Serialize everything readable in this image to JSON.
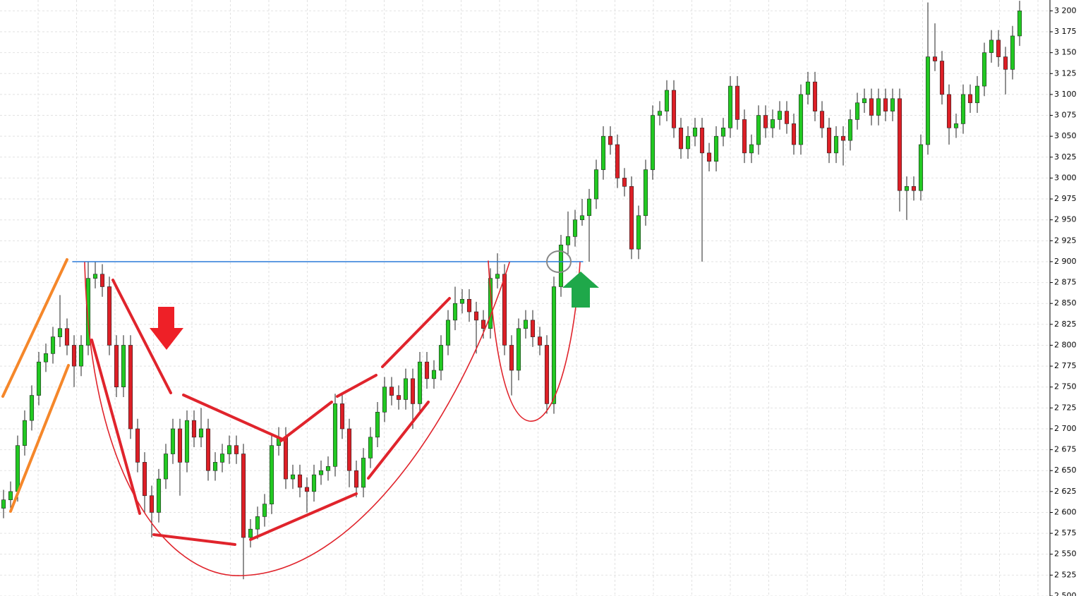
{
  "chart_data": {
    "type": "candlestick",
    "up_color": "#22c922",
    "down_color": "#dd1f26",
    "grid": true,
    "ylim": [
      2500,
      3213
    ],
    "yticks": [
      {
        "value": 2500,
        "label": "2 500"
      },
      {
        "value": 2525,
        "label": "2 525"
      },
      {
        "value": 2550,
        "label": "2 550"
      },
      {
        "value": 2575,
        "label": "2 575"
      },
      {
        "value": 2600,
        "label": "2 600"
      },
      {
        "value": 2625,
        "label": "2 625"
      },
      {
        "value": 2650,
        "label": "2 650"
      },
      {
        "value": 2675,
        "label": "2 675"
      },
      {
        "value": 2700,
        "label": "2 700"
      },
      {
        "value": 2725,
        "label": "2 725"
      },
      {
        "value": 2750,
        "label": "2 750"
      },
      {
        "value": 2775,
        "label": "2 775"
      },
      {
        "value": 2800,
        "label": "2 800"
      },
      {
        "value": 2825,
        "label": "2 825"
      },
      {
        "value": 2850,
        "label": "2 850"
      },
      {
        "value": 2875,
        "label": "2 875"
      },
      {
        "value": 2900,
        "label": "2 900"
      },
      {
        "value": 2925,
        "label": "2 925"
      },
      {
        "value": 2950,
        "label": "2 950"
      },
      {
        "value": 2975,
        "label": "2 975"
      },
      {
        "value": 3000,
        "label": "3 000"
      },
      {
        "value": 3025,
        "label": "3 025"
      },
      {
        "value": 3050,
        "label": "3 050"
      },
      {
        "value": 3075,
        "label": "3 075"
      },
      {
        "value": 3100,
        "label": "3 100"
      },
      {
        "value": 3125,
        "label": "3 125"
      },
      {
        "value": 3150,
        "label": "3 150"
      },
      {
        "value": 3175,
        "label": "3 175"
      },
      {
        "value": 3200,
        "label": "3 200"
      }
    ],
    "open": [
      2605,
      2615,
      2625,
      2680,
      2710,
      2740,
      2780,
      2790,
      2810,
      2820,
      2800,
      2775,
      2800,
      2880,
      2885,
      2870,
      2800,
      2750,
      2800,
      2700,
      2660,
      2620,
      2600,
      2640,
      2670,
      2700,
      2660,
      2710,
      2690,
      2700,
      2650,
      2660,
      2670,
      2680,
      2670,
      2570,
      2580,
      2595,
      2610,
      2680,
      2690,
      2640,
      2645,
      2630,
      2625,
      2645,
      2650,
      2655,
      2730,
      2700,
      2650,
      2630,
      2665,
      2690,
      2720,
      2750,
      2740,
      2735,
      2760,
      2730,
      2780,
      2760,
      2770,
      2800,
      2830,
      2850,
      2855,
      2840,
      2830,
      2820,
      2880,
      2885,
      2800,
      2770,
      2820,
      2830,
      2810,
      2800,
      2730,
      2870,
      2920,
      2930,
      2950,
      2955,
      2975,
      3010,
      3050,
      3040,
      3000,
      2990,
      2915,
      2955,
      3010,
      3075,
      3080,
      3105,
      3060,
      3035,
      3050,
      3060,
      3030,
      3020,
      3050,
      3060,
      3110,
      3070,
      3030,
      3040,
      3075,
      3060,
      3070,
      3080,
      3065,
      3040,
      3100,
      3115,
      3080,
      3060,
      3030,
      3050,
      3045,
      3070,
      3090,
      3095,
      3075,
      3095,
      3080,
      3095,
      2985,
      2990,
      2985,
      3040,
      3145,
      3140,
      3100,
      3060,
      3065,
      3100,
      3090,
      3110,
      3150,
      3165,
      3145,
      3130,
      3170
    ],
    "high": [
      2627,
      2637,
      2692,
      2722,
      2752,
      2792,
      2802,
      2822,
      2860,
      2832,
      2812,
      2812,
      2900,
      2900,
      2897,
      2882,
      2812,
      2812,
      2812,
      2712,
      2672,
      2632,
      2652,
      2682,
      2712,
      2712,
      2722,
      2722,
      2725,
      2712,
      2672,
      2682,
      2692,
      2692,
      2682,
      2592,
      2607,
      2622,
      2692,
      2702,
      2702,
      2657,
      2657,
      2642,
      2657,
      2662,
      2667,
      2742,
      2742,
      2712,
      2662,
      2677,
      2702,
      2732,
      2762,
      2762,
      2752,
      2772,
      2772,
      2792,
      2792,
      2782,
      2812,
      2842,
      2870,
      2867,
      2867,
      2852,
      2842,
      2892,
      2910,
      2897,
      2812,
      2832,
      2842,
      2842,
      2822,
      2812,
      2882,
      2932,
      2960,
      2962,
      2975,
      2987,
      3022,
      3062,
      3062,
      3052,
      3012,
      3002,
      2967,
      3022,
      3087,
      3092,
      3117,
      3117,
      3072,
      3062,
      3072,
      3072,
      3042,
      3062,
      3072,
      3122,
      3122,
      3082,
      3052,
      3087,
      3087,
      3082,
      3092,
      3092,
      3077,
      3112,
      3127,
      3127,
      3092,
      3072,
      3062,
      3062,
      3082,
      3102,
      3107,
      3107,
      3107,
      3107,
      3107,
      3107,
      3002,
      3002,
      3052,
      3210,
      3185,
      3152,
      3112,
      3077,
      3112,
      3112,
      3122,
      3162,
      3177,
      3177,
      3157,
      3182,
      3212
    ],
    "low": [
      2593,
      2603,
      2613,
      2668,
      2698,
      2728,
      2768,
      2778,
      2798,
      2788,
      2750,
      2763,
      2788,
      2868,
      2858,
      2788,
      2738,
      2738,
      2688,
      2648,
      2600,
      2570,
      2588,
      2628,
      2658,
      2620,
      2648,
      2678,
      2678,
      2638,
      2638,
      2648,
      2658,
      2658,
      2520,
      2558,
      2568,
      2583,
      2598,
      2668,
      2628,
      2628,
      2618,
      2600,
      2613,
      2633,
      2638,
      2643,
      2688,
      2630,
      2618,
      2618,
      2653,
      2678,
      2708,
      2728,
      2723,
      2723,
      2700,
      2718,
      2748,
      2748,
      2758,
      2788,
      2818,
      2838,
      2828,
      2790,
      2808,
      2808,
      2868,
      2788,
      2740,
      2758,
      2808,
      2798,
      2788,
      2718,
      2718,
      2858,
      2908,
      2918,
      2943,
      2900,
      2963,
      2998,
      3028,
      2988,
      2978,
      2903,
      2903,
      2943,
      2998,
      3063,
      3068,
      3048,
      3023,
      3023,
      3038,
      2900,
      3008,
      3008,
      3038,
      3048,
      3058,
      3018,
      3018,
      3028,
      3048,
      3048,
      3058,
      3053,
      3028,
      3028,
      3088,
      3068,
      3048,
      3018,
      3018,
      3015,
      3033,
      3058,
      3078,
      3063,
      3063,
      3068,
      3068,
      2960,
      2950,
      2973,
      2973,
      3028,
      3128,
      3088,
      3040,
      3048,
      3053,
      3078,
      3078,
      3098,
      3138,
      3133,
      3100,
      3118,
      3158
    ],
    "close": [
      2615,
      2625,
      2680,
      2710,
      2740,
      2780,
      2790,
      2810,
      2820,
      2800,
      2775,
      2800,
      2880,
      2885,
      2870,
      2800,
      2750,
      2800,
      2700,
      2660,
      2620,
      2600,
      2640,
      2670,
      2700,
      2660,
      2710,
      2690,
      2700,
      2650,
      2660,
      2670,
      2680,
      2670,
      2570,
      2580,
      2595,
      2610,
      2680,
      2690,
      2640,
      2645,
      2630,
      2625,
      2645,
      2650,
      2655,
      2730,
      2700,
      2650,
      2630,
      2665,
      2690,
      2720,
      2750,
      2740,
      2735,
      2760,
      2730,
      2780,
      2760,
      2770,
      2800,
      2830,
      2850,
      2855,
      2840,
      2830,
      2820,
      2880,
      2885,
      2800,
      2770,
      2820,
      2830,
      2810,
      2800,
      2730,
      2870,
      2920,
      2930,
      2950,
      2955,
      2975,
      3010,
      3050,
      3040,
      3000,
      2990,
      2915,
      2955,
      3010,
      3075,
      3080,
      3105,
      3060,
      3035,
      3050,
      3060,
      3030,
      3020,
      3050,
      3060,
      3110,
      3070,
      3030,
      3040,
      3075,
      3060,
      3070,
      3080,
      3065,
      3040,
      3100,
      3115,
      3080,
      3060,
      3030,
      3050,
      3045,
      3070,
      3090,
      3095,
      3075,
      3095,
      3080,
      3095,
      2985,
      2990,
      2985,
      3040,
      3145,
      3140,
      3100,
      3060,
      3065,
      3100,
      3090,
      3110,
      3150,
      3165,
      3145,
      3130,
      3170,
      3200
    ]
  }
}
